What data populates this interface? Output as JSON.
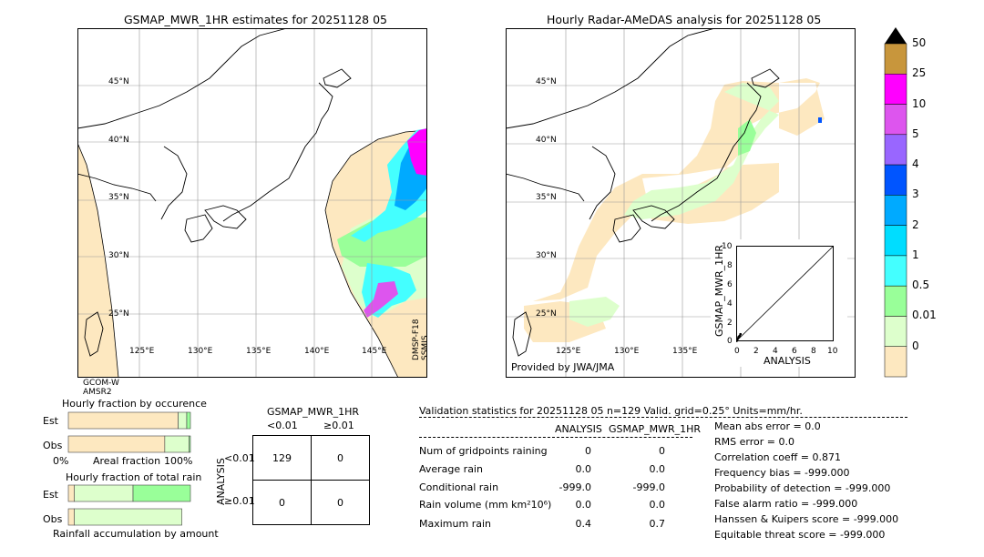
{
  "map_left": {
    "title": "GSMAP_MWR_1HR estimates for 20251128 05",
    "lat_labels": [
      "45°N",
      "40°N",
      "35°N",
      "30°N",
      "25°N"
    ],
    "lon_labels": [
      "125°E",
      "130°E",
      "135°E",
      "140°E",
      "145°E"
    ],
    "sat_left": "GCOM-W\nAMSR2",
    "sat_left_1": "GCOM-W",
    "sat_left_2": "AMSR2",
    "sat_right_1": "DMSP-F18",
    "sat_right_2": "SSMIS"
  },
  "map_right": {
    "title": "Hourly Radar-AMeDAS analysis for 20251128 05",
    "lat_labels": [
      "45°N",
      "40°N",
      "35°N",
      "30°N",
      "25°N"
    ],
    "lon_labels": [
      "125°E",
      "130°E",
      "135°E"
    ],
    "credit": "Provided by JWA/JMA"
  },
  "colorbar": {
    "labels": [
      "50",
      "25",
      "10",
      "5",
      "4",
      "3",
      "2",
      "1",
      "0.5",
      "0.01",
      "0"
    ],
    "colors": [
      "#c8963c",
      "#ff00ff",
      "#dd55ee",
      "#9966ff",
      "#0055ff",
      "#00aaff",
      "#00ddff",
      "#44ffff",
      "#99ff99",
      "#ddffcc",
      "#fde8c0"
    ]
  },
  "scatter": {
    "ylabel": "GSMAP_MWR_1HR",
    "xlabel": "ANALYSIS",
    "ticks": [
      "0",
      "2",
      "4",
      "6",
      "8",
      "10"
    ],
    "yticks": [
      "0",
      "2",
      "4",
      "6",
      "8",
      "10"
    ]
  },
  "fraction_occurrence": {
    "title": "Hourly fraction by occurence",
    "row1": "Est",
    "row2": "Obs",
    "axis_left": "0%",
    "axis_mid": "Areal fraction",
    "axis_right": "100%"
  },
  "fraction_total": {
    "title": "Hourly fraction of total rain",
    "row1": "Est",
    "row2": "Obs",
    "footer": "Rainfall accumulation by amount"
  },
  "contingency": {
    "title": "GSMAP_MWR_1HR",
    "col1": "<0.01",
    "col2": "≥0.01",
    "row_axis": "ANALYSIS",
    "row1": "<0.01",
    "row2": "≥0.01",
    "cells": [
      "129",
      "0",
      "0",
      "0"
    ]
  },
  "validation": {
    "header": "Validation statistics for 20251128 05  n=129 Valid. grid=0.25° Units=mm/hr.",
    "col_analysis": "ANALYSIS",
    "col_gsmap": "GSMAP_MWR_1HR",
    "rows": [
      {
        "label": "Num of gridpoints raining",
        "a": "0",
        "g": "0"
      },
      {
        "label": "Average rain",
        "a": "0.0",
        "g": "0.0"
      },
      {
        "label": "Conditional rain",
        "a": "-999.0",
        "g": "-999.0"
      },
      {
        "label": "Rain volume (mm km²10⁶)",
        "a": "0.0",
        "g": "0.0"
      },
      {
        "label": "Maximum rain",
        "a": "0.4",
        "g": "0.7"
      }
    ],
    "scores": [
      "Mean abs error =    0.0",
      "RMS error =    0.0",
      "Correlation coeff =  0.871",
      "Frequency bias = -999.000",
      "Probability of detection = -999.000",
      "False alarm ratio = -999.000",
      "Hanssen & Kuipers score = -999.000",
      "Equitable threat score = -999.000"
    ]
  },
  "chart_data": [
    {
      "type": "scatter",
      "xlabel": "ANALYSIS",
      "ylabel": "GSMAP_MWR_1HR",
      "xlim": [
        0,
        10
      ],
      "ylim": [
        0,
        10
      ],
      "points": [
        [
          0.0,
          0.0
        ],
        [
          0.1,
          0.2
        ],
        [
          0.2,
          0.4
        ],
        [
          0.3,
          0.5
        ],
        [
          0.4,
          0.7
        ]
      ]
    },
    {
      "type": "bar",
      "title": "Hourly fraction by occurence",
      "categories": [
        "Est",
        "Obs"
      ],
      "series": [
        {
          "values": [
            0.9,
            0.79
          ]
        },
        {
          "values": [
            0.07,
            0.2
          ]
        },
        {
          "values": [
            0.03,
            0.01
          ]
        }
      ]
    },
    {
      "type": "bar",
      "title": "Hourly fraction of total rain",
      "categories": [
        "Est",
        "Obs"
      ],
      "series": [
        {
          "values": [
            0.05,
            0.05
          ]
        },
        {
          "values": [
            0.48,
            0.88
          ]
        },
        {
          "values": [
            0.47,
            0.0
          ]
        }
      ]
    }
  ]
}
